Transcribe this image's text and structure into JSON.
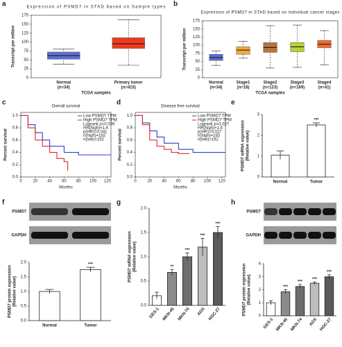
{
  "chart_data": [
    {
      "panel": "a",
      "type": "box",
      "title": "Expression of PSMD7 in STAD based on Sample types",
      "ylabel": "Transcript per million",
      "xlabel": "TCGA samples",
      "categories": [
        "Normal",
        "Primary tumor"
      ],
      "category_notes": [
        "(n=34)",
        "(n=415)"
      ],
      "colors": [
        "#5b6fd6",
        "#ee3b1f"
      ],
      "values": [
        [
          38,
          52,
          62,
          72,
          80
        ],
        [
          35,
          82,
          95,
          112,
          162
        ]
      ],
      "ylim": [
        0,
        175
      ],
      "yticks": [
        0,
        25,
        50,
        75,
        100,
        125,
        150,
        175
      ]
    },
    {
      "panel": "b",
      "type": "box",
      "title": "Expression of PSMD7 in STAD based on individual cancer stages",
      "ylabel": "Transcript per million",
      "xlabel": "TCGA samples",
      "categories": [
        "Normal",
        "Stage1",
        "Stage2",
        "Stage3",
        "Stage4"
      ],
      "category_notes": [
        "(n=34)",
        "(n=18)",
        "(n=123)",
        "(n=169)",
        "(n=41)"
      ],
      "colors": [
        "#5b6fd6",
        "#f2a93b",
        "#b5753d",
        "#b7d235",
        "#ef6b2e"
      ],
      "values": [
        [
          38,
          53,
          62,
          72,
          82
        ],
        [
          60,
          72,
          85,
          95,
          112
        ],
        [
          30,
          78,
          93,
          108,
          160
        ],
        [
          32,
          80,
          95,
          108,
          162
        ],
        [
          40,
          92,
          103,
          115,
          145
        ]
      ],
      "ylim": [
        0,
        175
      ],
      "yticks": [
        0,
        25,
        50,
        75,
        100,
        125,
        150,
        175
      ]
    },
    {
      "panel": "c",
      "type": "survival",
      "title": "Overall survival",
      "ylabel": "Percent survival",
      "xlabel": "Months",
      "series": [
        {
          "name": "Low PSMD7 TPM",
          "color": "#2b3fc8",
          "x": [
            0,
            10,
            20,
            30,
            40,
            60,
            80,
            100,
            125
          ],
          "y": [
            1,
            0.85,
            0.72,
            0.6,
            0.5,
            0.4,
            0.36,
            0.36,
            0.36
          ]
        },
        {
          "name": "High PSMD7 TPM",
          "color": "#e0262b",
          "x": [
            0,
            10,
            20,
            30,
            40,
            50,
            60,
            65
          ],
          "y": [
            1,
            0.8,
            0.6,
            0.5,
            0.4,
            0.3,
            0.25,
            0.1
          ]
        }
      ],
      "stats": [
        "Logrank p=0.039",
        "HR(high)=1.4",
        "p(HR)=0.041",
        "n(high)=192",
        "n(low)=192"
      ],
      "xlim": [
        0,
        125
      ],
      "xticks": [
        0,
        20,
        40,
        60,
        80,
        100,
        120
      ],
      "ylim": [
        0,
        1.05
      ],
      "yticks": [
        {
          "value": 0,
          "label": "0.0"
        },
        {
          "value": 0.2,
          "label": "0.2"
        },
        {
          "value": 0.4,
          "label": "0.4"
        },
        {
          "value": 0.6,
          "label": "0.6"
        },
        {
          "value": 0.8,
          "label": "0.8"
        },
        {
          "value": 1,
          "label": "1.0"
        }
      ]
    },
    {
      "panel": "d",
      "type": "survival",
      "title": "Disease free survival",
      "ylabel": "Percent survival",
      "xlabel": "Months",
      "series": [
        {
          "name": "Low PSMD7 TPM",
          "color": "#2b3fc8",
          "x": [
            0,
            10,
            20,
            30,
            40,
            60,
            80,
            100,
            125
          ],
          "y": [
            1,
            0.88,
            0.75,
            0.65,
            0.55,
            0.45,
            0.4,
            0.4,
            0.4
          ]
        },
        {
          "name": "High PSMD7 TPM",
          "color": "#e0262b",
          "x": [
            0,
            10,
            20,
            30,
            40,
            50,
            60,
            75
          ],
          "y": [
            1,
            0.85,
            0.6,
            0.5,
            0.45,
            0.4,
            0.38,
            0.38
          ]
        }
      ],
      "stats": [
        "Logrank p=0.027",
        "HR(high)=1.5",
        "p(HR)=0.027",
        "n(high)=192",
        "n(low)=192"
      ],
      "xlim": [
        0,
        125
      ],
      "xticks": [
        0,
        20,
        40,
        60,
        80,
        100,
        120
      ],
      "ylim": [
        0,
        1.05
      ],
      "yticks": [
        {
          "value": 0,
          "label": "0.0"
        },
        {
          "value": 0.2,
          "label": "0.2"
        },
        {
          "value": 0.4,
          "label": "0.4"
        },
        {
          "value": 0.6,
          "label": "0.6"
        },
        {
          "value": 0.8,
          "label": "0.8"
        },
        {
          "value": 1,
          "label": "1.0"
        }
      ]
    },
    {
      "panel": "e",
      "type": "bar",
      "ylabel": "PSMD7 mRNA expression",
      "ylabel2": "(Relative value)",
      "categories": [
        "Normal",
        "Tumor"
      ],
      "values": [
        1.05,
        2.5
      ],
      "errors": [
        0.2,
        0.1
      ],
      "annotations": [
        null,
        "***"
      ],
      "colors": [
        "#ffffff",
        "#ffffff"
      ],
      "ylim": [
        0,
        3
      ],
      "yticks": [
        0,
        1,
        2,
        3
      ]
    },
    {
      "panel": "f",
      "type": "bar",
      "ylabel": "PSMD7 protein expression",
      "ylabel2": "(Relative value)",
      "blot_labels": [
        "PSMD7",
        "GAPDH"
      ],
      "categories": [
        "Normal",
        "Tumor"
      ],
      "values": [
        1.0,
        1.75
      ],
      "errors": [
        0.07,
        0.08
      ],
      "annotations": [
        null,
        "***"
      ],
      "colors": [
        "#ffffff",
        "#ffffff"
      ],
      "ylim": [
        0,
        2
      ],
      "yticks": [
        {
          "value": 0,
          "label": "0.0"
        },
        {
          "value": 0.5,
          "label": "0.5"
        },
        {
          "value": 1,
          "label": "1.0"
        },
        {
          "value": 1.5,
          "label": "1.5"
        },
        {
          "value": 2,
          "label": "2.0"
        }
      ]
    },
    {
      "panel": "g",
      "type": "bar",
      "ylabel": "PSMD7 mRNA expression",
      "ylabel2": "(Relative value)",
      "categories": [
        "GES-1",
        "MKN-45",
        "MKN-74",
        "AGS",
        "HGC-27"
      ],
      "values": [
        0.2,
        0.68,
        1.0,
        1.2,
        1.5
      ],
      "errors": [
        0.07,
        0.06,
        0.08,
        0.18,
        0.12
      ],
      "annotations": [
        null,
        "**",
        "***",
        "***",
        "***"
      ],
      "colors": [
        "#ffffff",
        "#8c8c8c",
        "#6e6e6e",
        "#bdbdbd",
        "#5a5a5a"
      ],
      "ylim": [
        0,
        2
      ],
      "yticks": [
        {
          "value": 0,
          "label": "0.0"
        },
        {
          "value": 0.5,
          "label": "0.5"
        },
        {
          "value": 1,
          "label": "1.0"
        },
        {
          "value": 1.5,
          "label": "1.5"
        },
        {
          "value": 2,
          "label": "2.0"
        }
      ]
    },
    {
      "panel": "h",
      "type": "bar",
      "ylabel": "PSMD7 protein expression",
      "ylabel2": "(Relative value)",
      "blot_labels": [
        "PSMD7",
        "GAPDH"
      ],
      "categories": [
        "GES-1",
        "MKN-45",
        "MKN-74",
        "AGS",
        "HGC-27"
      ],
      "values": [
        1.0,
        1.85,
        2.25,
        2.5,
        3.0
      ],
      "errors": [
        0.15,
        0.15,
        0.15,
        0.1,
        0.15
      ],
      "annotations": [
        null,
        "***",
        "***",
        "***",
        "***"
      ],
      "colors": [
        "#ffffff",
        "#8c8c8c",
        "#6e6e6e",
        "#bdbdbd",
        "#5a5a5a"
      ],
      "ylim": [
        0,
        4
      ],
      "yticks": [
        0,
        1,
        2,
        3,
        4
      ]
    }
  ]
}
